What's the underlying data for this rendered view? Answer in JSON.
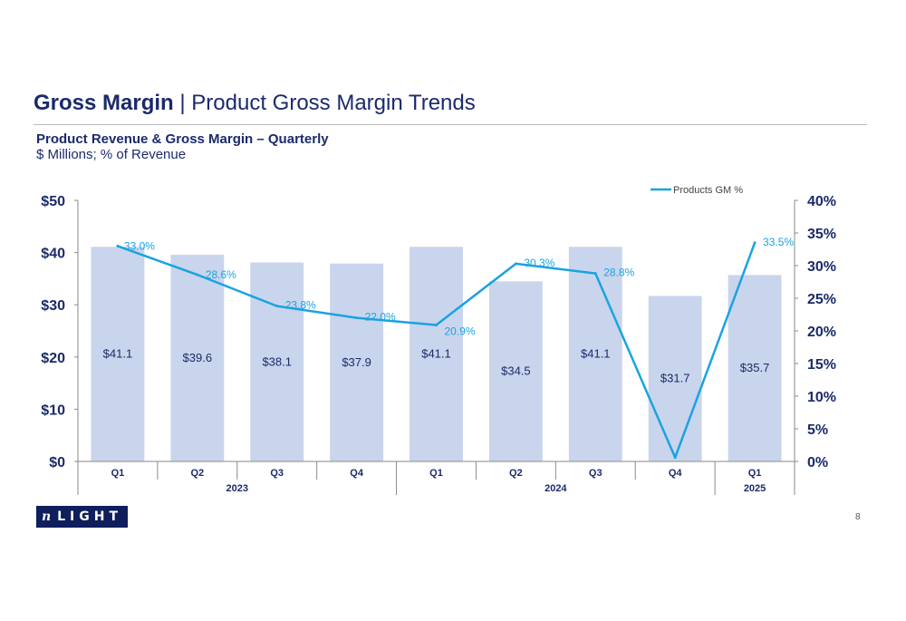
{
  "slide": {
    "title_bold": "Gross Margin",
    "title_separator": " | ",
    "title_rest": "Product Gross Margin Trends",
    "page_number": "8"
  },
  "logo": {
    "text_prefix": "n",
    "text_rest": "LIGHT"
  },
  "chart_data": {
    "type": "bar+line",
    "title": "Product Revenue & Gross Margin – Quarterly",
    "subtitle": "$ Millions; % of Revenue",
    "categories": [
      "Q1",
      "Q2",
      "Q3",
      "Q4",
      "Q1",
      "Q2",
      "Q3",
      "Q4",
      "Q1"
    ],
    "years": [
      {
        "label": "2023",
        "start": 0,
        "end": 3
      },
      {
        "label": "2024",
        "start": 4,
        "end": 7
      },
      {
        "label": "2025",
        "start": 8,
        "end": 8
      }
    ],
    "bar_series": {
      "values": [
        41.1,
        39.6,
        38.1,
        37.9,
        41.1,
        34.5,
        41.1,
        31.7,
        35.7
      ],
      "labels": [
        "$41.1",
        "$39.6",
        "$38.1",
        "$37.9",
        "$41.1",
        "$34.5",
        "$41.1",
        "$31.7",
        "$35.7"
      ],
      "axis": "left",
      "color": "#c9d5ec"
    },
    "line_series": {
      "name": "Products GM %",
      "values": [
        33.0,
        28.6,
        23.8,
        22.0,
        20.9,
        30.3,
        28.8,
        0.6,
        33.5
      ],
      "labels": [
        "33.0%",
        "28.6%",
        "23.8%",
        "22.0%",
        "20.9%",
        "30.3%",
        "28.8%",
        "",
        "33.5%"
      ],
      "axis": "right",
      "color": "#1aa3e0"
    },
    "y_left": {
      "min": 0,
      "max": 50,
      "ticks": [
        0,
        10,
        20,
        30,
        40,
        50
      ],
      "tick_labels": [
        "$0",
        "$10",
        "$20",
        "$30",
        "$40",
        "$50"
      ]
    },
    "y_right": {
      "min": 0,
      "max": 40,
      "ticks": [
        0,
        5,
        10,
        15,
        20,
        25,
        30,
        35,
        40
      ],
      "tick_labels": [
        "0%",
        "5%",
        "10%",
        "15%",
        "20%",
        "25%",
        "30%",
        "35%",
        "40%"
      ]
    },
    "legend_position": "top-right",
    "grid": false
  }
}
